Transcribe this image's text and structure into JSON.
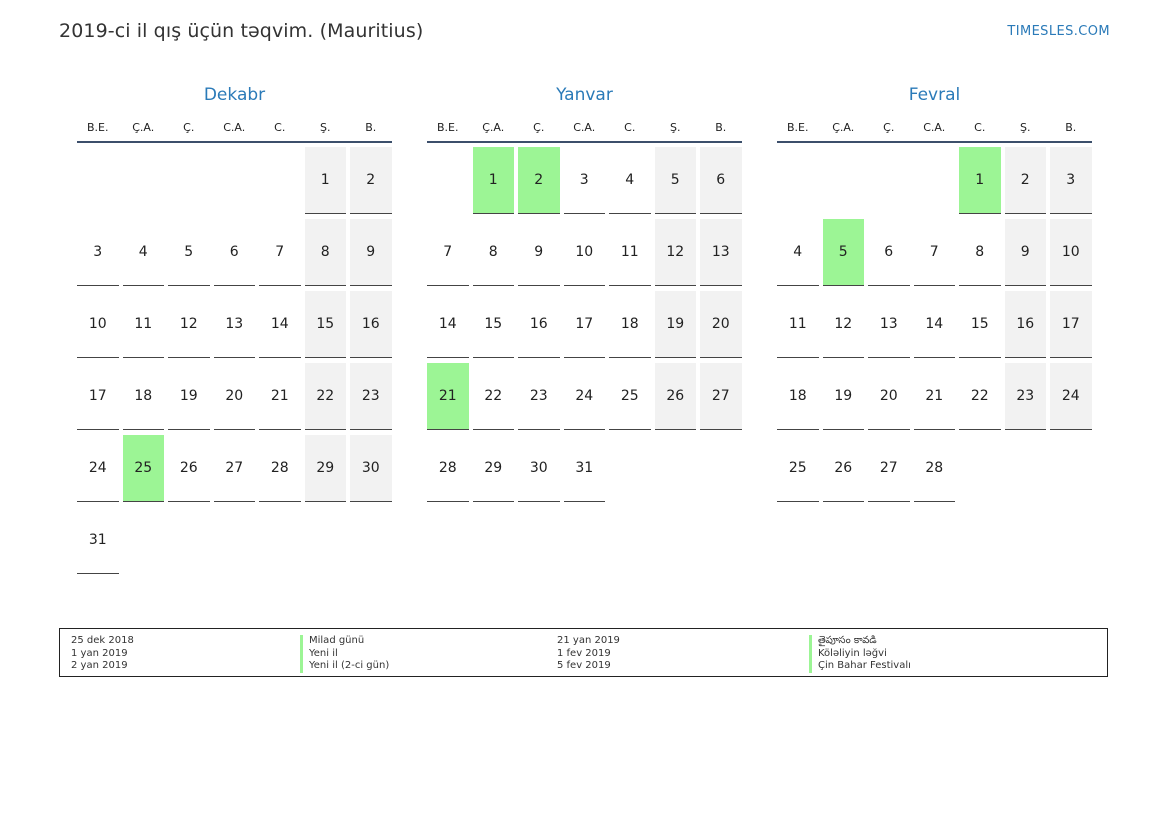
{
  "header": {
    "title": "2019-ci il qış üçün təqvim. (Mauritius)",
    "site": "TIMESLES.COM"
  },
  "weekdays": [
    "B.E.",
    "Ç.A.",
    "Ç.",
    "C.A.",
    "C.",
    "Ş.",
    "B."
  ],
  "months": [
    {
      "name": "Dekabr",
      "offset": 5,
      "days": 31,
      "holidays": [
        25
      ]
    },
    {
      "name": "Yanvar",
      "offset": 1,
      "days": 31,
      "holidays": [
        1,
        2,
        21
      ]
    },
    {
      "name": "Fevral",
      "offset": 4,
      "days": 28,
      "holidays": [
        1,
        5
      ]
    }
  ],
  "legend": [
    {
      "date": "25 dek 2018",
      "name": "Milad günü"
    },
    {
      "date": "1 yan 2019",
      "name": "Yeni il"
    },
    {
      "date": "2 yan 2019",
      "name": "Yeni il (2-ci gün)"
    },
    {
      "date": "21 yan 2019",
      "name": "తైపూసం కావడి"
    },
    {
      "date": "1 fev 2019",
      "name": "Köləliyin ləğvi"
    },
    {
      "date": "5 fev 2019",
      "name": "Çin Bahar Festivalı"
    }
  ],
  "colors": {
    "holiday": "#9cf595",
    "weekend": "#f2f2f2",
    "accent": "#2a7ab8"
  }
}
